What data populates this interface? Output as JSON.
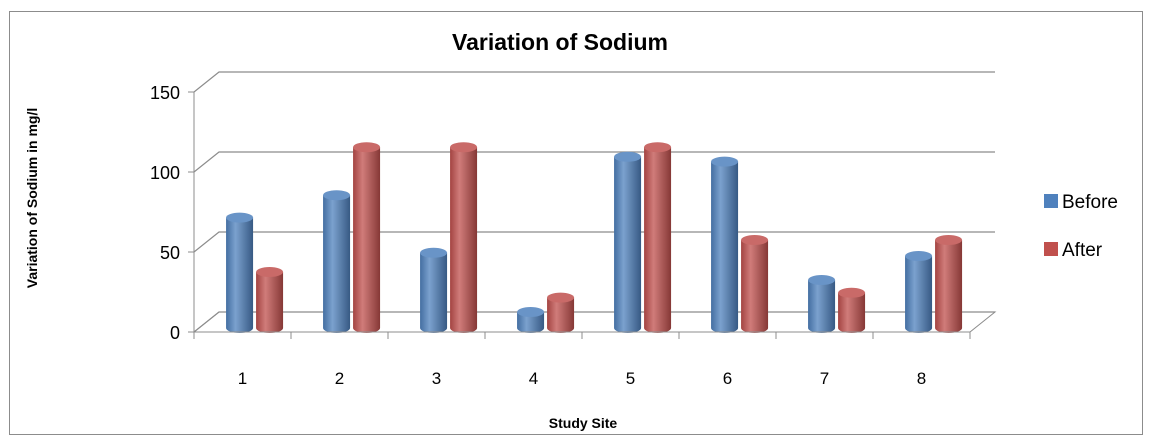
{
  "chart_data": {
    "type": "bar",
    "title": "Variation of Sodium",
    "xlabel": "Study Site",
    "ylabel": "Variation of Sodium in mg/l",
    "categories": [
      "1",
      "2",
      "3",
      "4",
      "5",
      "6",
      "7",
      "8"
    ],
    "series": [
      {
        "name": "Before",
        "color": "#4f81bd",
        "values": [
          69,
          83,
          47,
          10,
          107,
          104,
          30,
          45
        ]
      },
      {
        "name": "After",
        "color": "#c0504d",
        "values": [
          35,
          113,
          113,
          19,
          113,
          55,
          22,
          55
        ]
      }
    ],
    "yticks": [
      "0",
      "50",
      "100",
      "150"
    ],
    "ylim": [
      0,
      150
    ],
    "grid": true,
    "legend_position": "right",
    "style": "3d-cylinder"
  }
}
